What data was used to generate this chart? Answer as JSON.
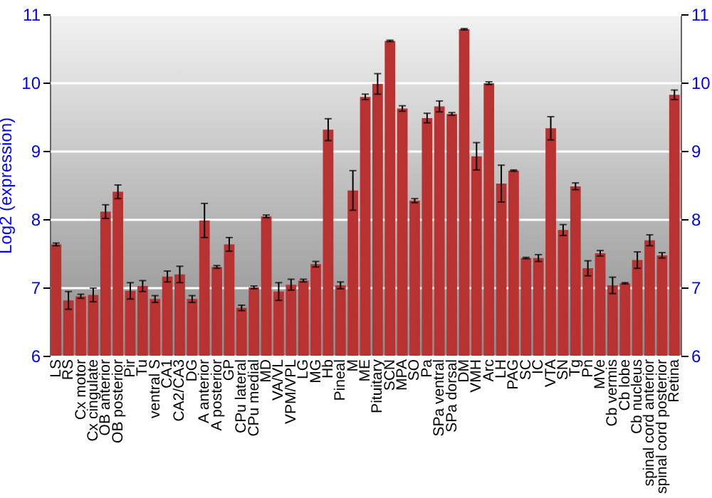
{
  "chart_data": {
    "type": "bar",
    "ylabel": "Log2 (expression)",
    "categories": [
      "LS",
      "RS",
      "Cx motor",
      "Cx cingulate",
      "OB anterior",
      "OB posterior",
      "Pir",
      "Tu",
      "ventral S",
      "CA1",
      "CA2/CA3",
      "DG",
      "A anterior",
      "A posterior",
      "GP",
      "CPu lateral",
      "CPu medial",
      "MD",
      "VA/VL",
      "VPM/VPL",
      "LG",
      "MG",
      "Hb",
      "Pineal",
      "M",
      "ME",
      "Pituitary",
      "SCN",
      "MPA",
      "SO",
      "Pa",
      "SPa ventral",
      "SPa dorsal",
      "DM",
      "VMH",
      "Arc",
      "LH",
      "PAG",
      "SC",
      "IC",
      "VTA",
      "SN",
      "Tg",
      "Pn",
      "MVe",
      "Cb vermis",
      "Cb lobe",
      "Cb nucleus",
      "spinal cord anterior",
      "spinal cord posterior",
      "Retina"
    ],
    "series": [
      {
        "color": "#b83232",
        "values": [
          7.63,
          6.81,
          6.87,
          6.89,
          8.11,
          8.4,
          6.95,
          7.02,
          6.83,
          7.16,
          7.19,
          6.83,
          7.98,
          7.3,
          7.63,
          6.7,
          7.0,
          8.04,
          6.94,
          7.04,
          7.1,
          7.34,
          9.31,
          7.03,
          8.42,
          9.79,
          9.98,
          10.61,
          9.62,
          8.27,
          9.48,
          9.65,
          9.54,
          10.78,
          8.92,
          9.99,
          8.52,
          8.71,
          7.43,
          7.43,
          9.33,
          7.84,
          8.48,
          7.28,
          7.5,
          7.03,
          7.06,
          7.4,
          7.69,
          7.47,
          9.82
        ],
        "errors": [
          0.02,
          0.13,
          0.03,
          0.1,
          0.1,
          0.1,
          0.12,
          0.08,
          0.05,
          0.08,
          0.12,
          0.05,
          0.25,
          0.02,
          0.1,
          0.04,
          0.02,
          0.02,
          0.13,
          0.08,
          0.02,
          0.04,
          0.16,
          0.05,
          0.29,
          0.04,
          0.15,
          0.01,
          0.04,
          0.03,
          0.07,
          0.08,
          0.02,
          0.01,
          0.2,
          0.02,
          0.27,
          0.01,
          0.01,
          0.05,
          0.17,
          0.08,
          0.05,
          0.11,
          0.04,
          0.12,
          0.01,
          0.12,
          0.08,
          0.04,
          0.07
        ]
      }
    ],
    "ylim": [
      6,
      11
    ],
    "yticks": [
      6,
      7,
      8,
      9,
      10,
      11
    ],
    "y2lim": [
      6,
      11
    ],
    "y2ticks": [
      6,
      7,
      8,
      9,
      10,
      11
    ],
    "grid": "y"
  }
}
